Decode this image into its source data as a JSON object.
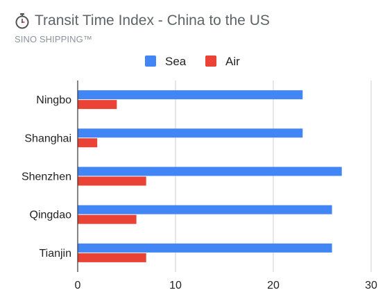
{
  "header": {
    "title": "Transit Time Index - China to the US",
    "subtitle": "SINO SHIPPING™",
    "icon": "stopwatch-icon"
  },
  "chart_data": {
    "type": "bar",
    "orientation": "horizontal",
    "categories": [
      "Ningbo",
      "Shanghai",
      "Shenzhen",
      "Qingdao",
      "Tianjin"
    ],
    "series": [
      {
        "name": "Sea",
        "color": "#4285f4",
        "values": [
          23,
          23,
          27,
          26,
          26
        ]
      },
      {
        "name": "Air",
        "color": "#ea4335",
        "values": [
          4,
          2,
          7,
          6,
          7
        ]
      }
    ],
    "xlim": [
      0,
      30
    ],
    "xticks": [
      0,
      10,
      20,
      30
    ],
    "legend_position": "top",
    "grid": true
  }
}
